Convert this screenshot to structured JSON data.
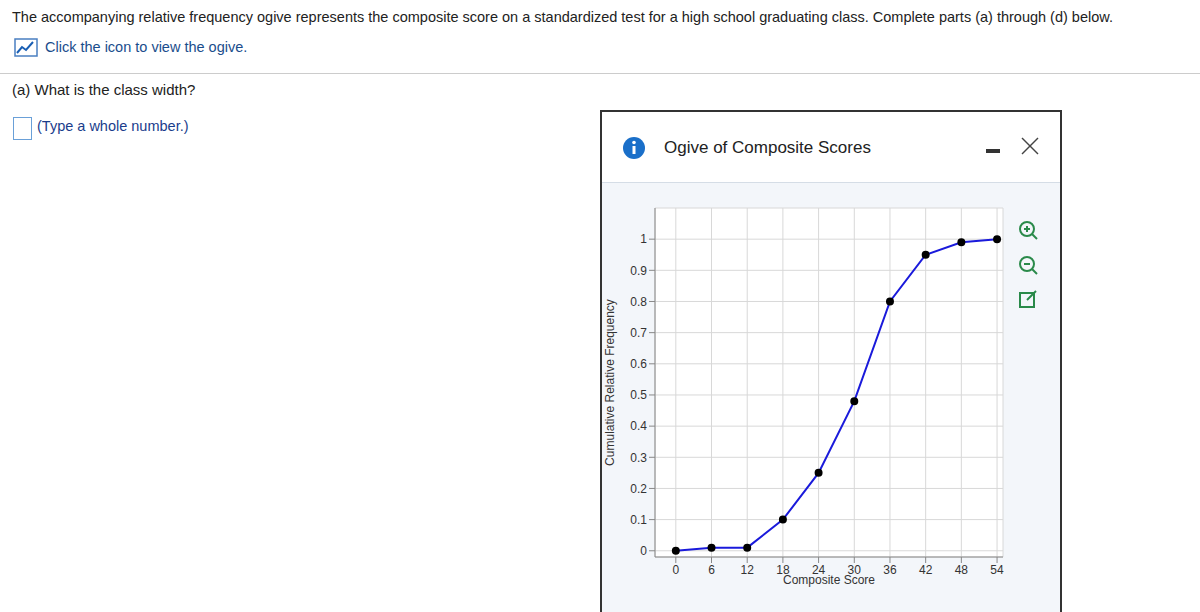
{
  "page": {
    "question": "The accompanying relative frequency ogive represents the composite score on a standardized test for a high school graduating class. Complete parts (a) through (d) below.",
    "link": "Click the icon to view the ogive.",
    "part_a": "(a) What is the class width?",
    "hint": "(Type a whole number.)"
  },
  "chart_data": {
    "type": "line",
    "title": "Ogive of Composite Scores",
    "x_label": "Composite Score",
    "y_label": "Cumulative Relative Frequency",
    "x": [
      0,
      6,
      12,
      18,
      24,
      30,
      36,
      42,
      48,
      54
    ],
    "values": [
      0,
      0.01,
      0.01,
      0.1,
      0.25,
      0.48,
      0.8,
      0.95,
      0.99,
      1.0
    ],
    "color": "#1a1adb",
    "marker": "circle",
    "xlim": [
      -3.5,
      55
    ],
    "ylim": [
      -0.02,
      1.1
    ],
    "xticks": [
      0,
      6,
      12,
      18,
      24,
      30,
      36,
      42,
      48,
      54
    ],
    "yticks": [
      0,
      0.1,
      0.2,
      0.3,
      0.4,
      0.5,
      0.6,
      0.7,
      0.8,
      0.9,
      1
    ],
    "grid": true
  }
}
